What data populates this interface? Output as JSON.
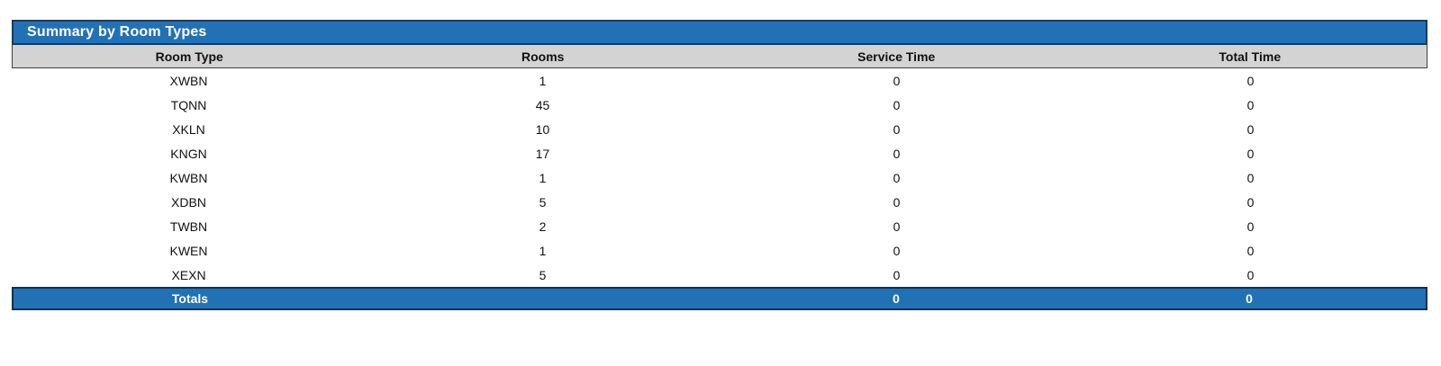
{
  "report": {
    "title": "Summary by Room Types",
    "columns": {
      "room_type": "Room Type",
      "rooms": "Rooms",
      "service_time": "Service Time",
      "total_time": "Total Time"
    },
    "rows": [
      {
        "room_type": "XWBN",
        "rooms": "1",
        "service_time": "0",
        "total_time": "0"
      },
      {
        "room_type": "TQNN",
        "rooms": "45",
        "service_time": "0",
        "total_time": "0"
      },
      {
        "room_type": "XKLN",
        "rooms": "10",
        "service_time": "0",
        "total_time": "0"
      },
      {
        "room_type": "KNGN",
        "rooms": "17",
        "service_time": "0",
        "total_time": "0"
      },
      {
        "room_type": "KWBN",
        "rooms": "1",
        "service_time": "0",
        "total_time": "0"
      },
      {
        "room_type": "XDBN",
        "rooms": "5",
        "service_time": "0",
        "total_time": "0"
      },
      {
        "room_type": "TWBN",
        "rooms": "2",
        "service_time": "0",
        "total_time": "0"
      },
      {
        "room_type": "KWEN",
        "rooms": "1",
        "service_time": "0",
        "total_time": "0"
      },
      {
        "room_type": "XEXN",
        "rooms": "5",
        "service_time": "0",
        "total_time": "0"
      }
    ],
    "totals": {
      "label": "Totals",
      "rooms": "",
      "service_time": "0",
      "total_time": "0"
    },
    "colors": {
      "header_bar_blue": "#2371B5",
      "header_bar_border": "#1A3A5C",
      "column_header_gray": "#D3D3D3",
      "column_header_border": "#3E3E3E",
      "totals_bar_blue": "#2371B5",
      "text_on_blue": "#FFFFFF",
      "body_text": "#111111"
    }
  }
}
